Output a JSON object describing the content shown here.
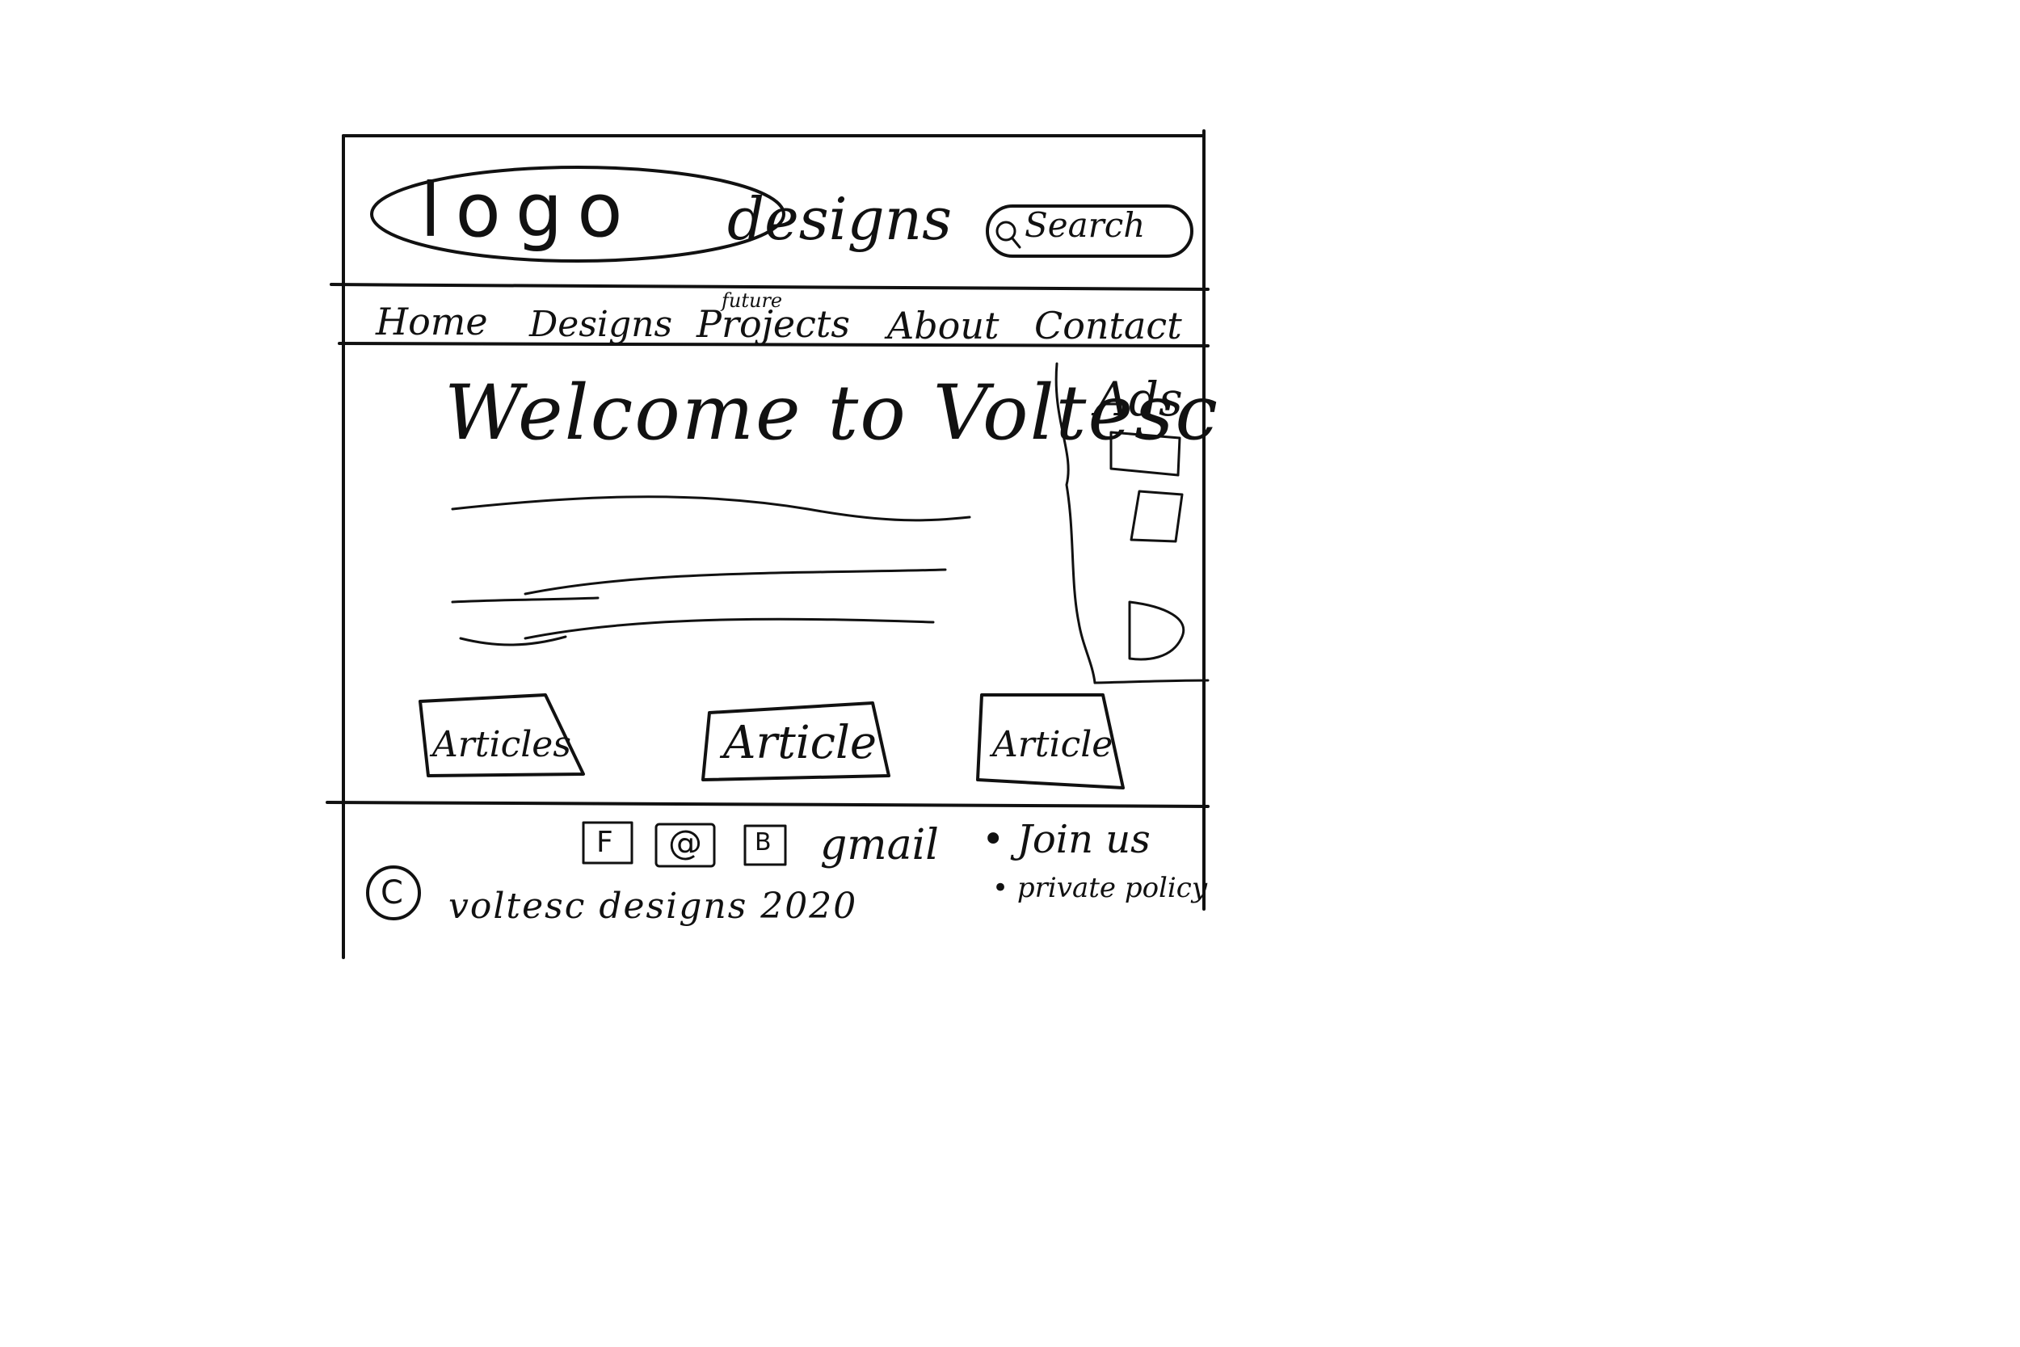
{
  "header": {
    "logo_text": "logo",
    "brand_text": "designs",
    "search_label": "Search",
    "search_icon": "magnifier-icon"
  },
  "nav": {
    "items": [
      {
        "label": "Home"
      },
      {
        "label": "Designs"
      },
      {
        "label": "Projects",
        "note": "future"
      },
      {
        "label": "About"
      },
      {
        "label": "Contact"
      }
    ]
  },
  "main": {
    "welcome": "Welcome to Voltesc",
    "ads_label": "Ads",
    "articles": [
      {
        "label": "Articles"
      },
      {
        "label": "Article"
      },
      {
        "label": "Article"
      }
    ]
  },
  "footer": {
    "social": [
      {
        "icon": "facebook-icon",
        "glyph": "F"
      },
      {
        "icon": "email-icon",
        "glyph": "@"
      },
      {
        "icon": "blog-icon",
        "glyph": "B"
      }
    ],
    "gmail": "gmail",
    "links": [
      {
        "label": "• Join us"
      },
      {
        "label": "• private policy"
      }
    ],
    "copyright_symbol": "C",
    "copyright_text": "voltesc designs 2020"
  }
}
